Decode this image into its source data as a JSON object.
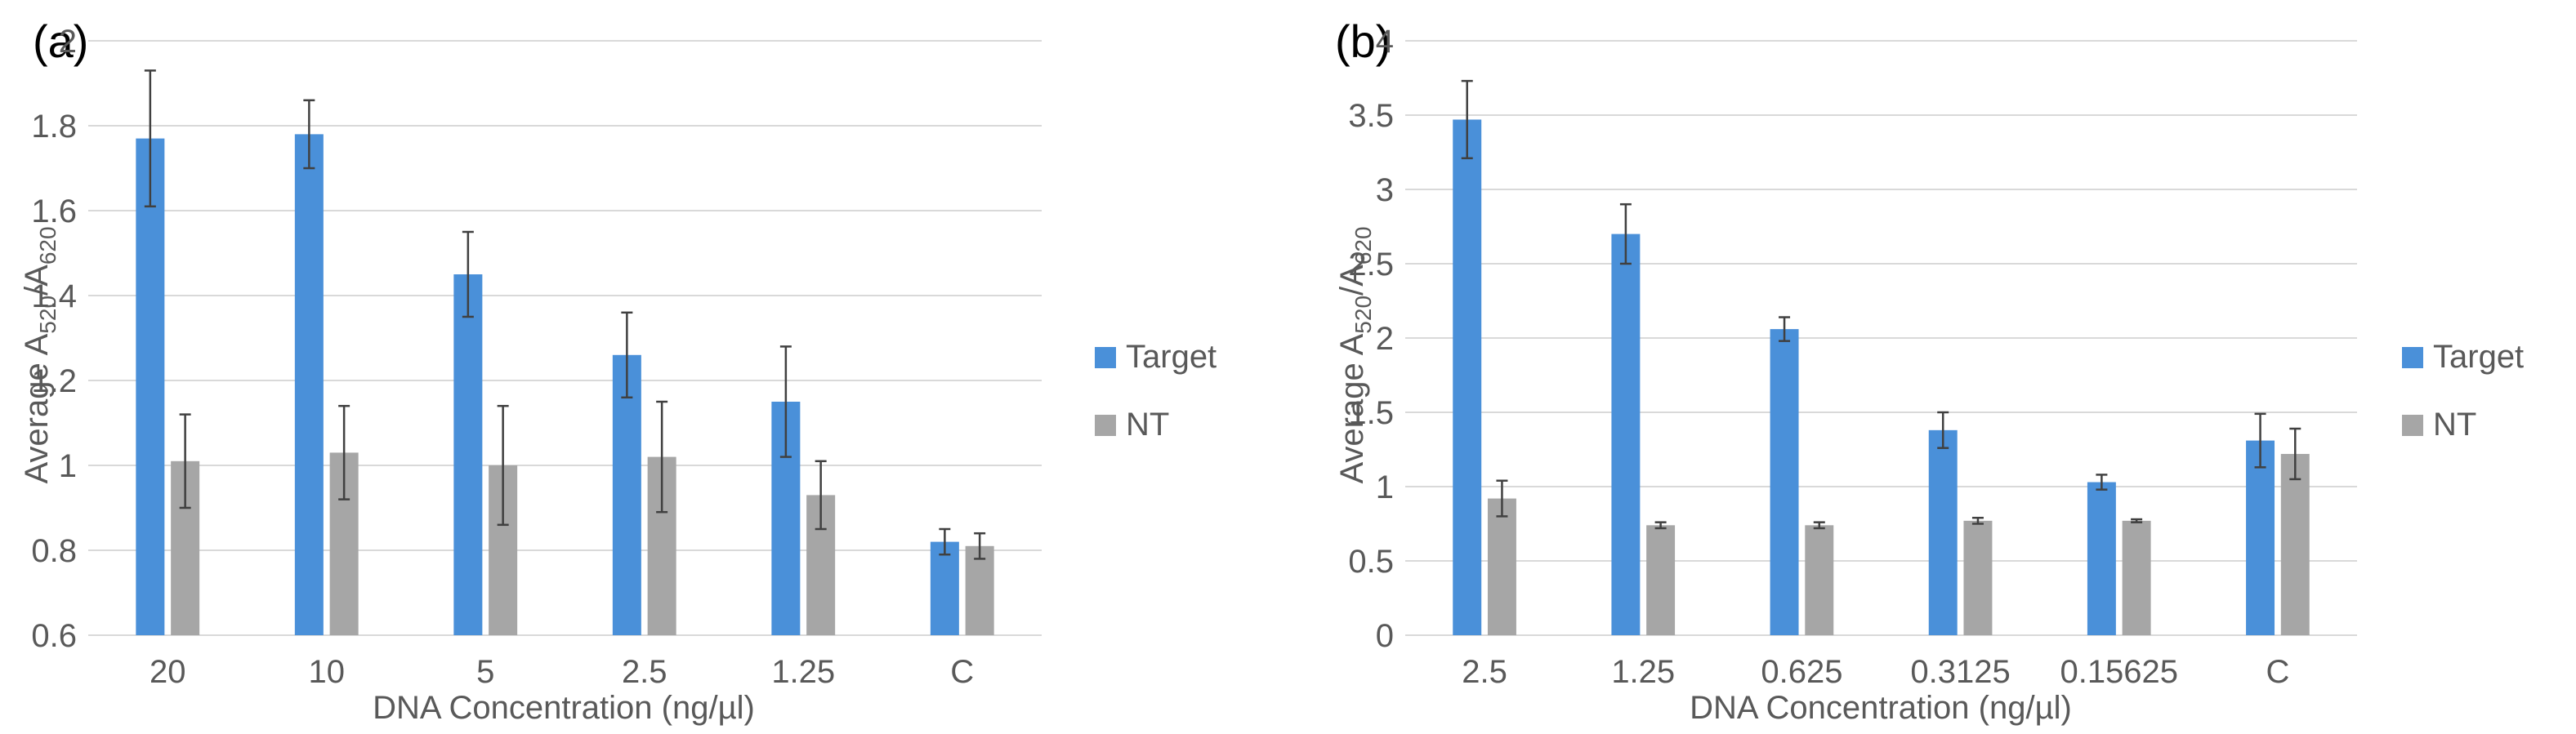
{
  "figure": {
    "panel_a_label": "(a)",
    "panel_b_label": "(b)"
  },
  "colors": {
    "target": "#4a90d9",
    "nt": "#a6a6a6",
    "grid": "#d9d9d9",
    "axis_text": "#595959",
    "error_bar": "#404040"
  },
  "chart_data": [
    {
      "type": "bar",
      "panel": "(a)",
      "categories": [
        "20",
        "10",
        "5",
        "2.5",
        "1.25",
        "C"
      ],
      "series": [
        {
          "name": "Target",
          "values": [
            1.77,
            1.78,
            1.45,
            1.26,
            1.15,
            0.82
          ],
          "errors": [
            0.16,
            0.08,
            0.1,
            0.1,
            0.13,
            0.03
          ]
        },
        {
          "name": "NT",
          "values": [
            1.01,
            1.03,
            1.0,
            1.02,
            0.93,
            0.81
          ],
          "errors": [
            0.11,
            0.11,
            0.14,
            0.13,
            0.08,
            0.03
          ]
        }
      ],
      "xlabel": "DNA Concentration (ng/µl)",
      "ylabel": {
        "prefix": "Average A",
        "sub1": "520",
        "mid": "/A",
        "sub2": "620"
      },
      "ylim": [
        0.6,
        2
      ],
      "yticks": [
        0.6,
        0.8,
        1,
        1.2,
        1.4,
        1.6,
        1.8,
        2
      ],
      "ytick_labels": [
        "0.6",
        "0.8",
        "1",
        "1.2",
        "1.4",
        "1.6",
        "1.8",
        "2"
      ],
      "grid": true,
      "legend": [
        "Target",
        "NT"
      ],
      "legend_position": "right"
    },
    {
      "type": "bar",
      "panel": "(b)",
      "categories": [
        "2.5",
        "1.25",
        "0.625",
        "0.3125",
        "0.15625",
        "C"
      ],
      "series": [
        {
          "name": "Target",
          "values": [
            3.47,
            2.7,
            2.06,
            1.38,
            1.03,
            1.31
          ],
          "errors": [
            0.26,
            0.2,
            0.08,
            0.12,
            0.05,
            0.18
          ]
        },
        {
          "name": "NT",
          "values": [
            0.92,
            0.74,
            0.74,
            0.77,
            0.77,
            1.22
          ],
          "errors": [
            0.12,
            0.02,
            0.02,
            0.02,
            0.01,
            0.17
          ]
        }
      ],
      "xlabel": "DNA Concentration (ng/µl)",
      "ylabel": {
        "prefix": "Average A",
        "sub1": "520",
        "mid": "/A",
        "sub2": "620"
      },
      "ylim": [
        0,
        4
      ],
      "yticks": [
        0,
        0.5,
        1,
        1.5,
        2,
        2.5,
        3,
        3.5,
        4
      ],
      "ytick_labels": [
        "0",
        "0.5",
        "1",
        "1.5",
        "2",
        "2.5",
        "3",
        "3.5",
        "4"
      ],
      "grid": true,
      "legend": [
        "Target",
        "NT"
      ],
      "legend_position": "right"
    }
  ]
}
